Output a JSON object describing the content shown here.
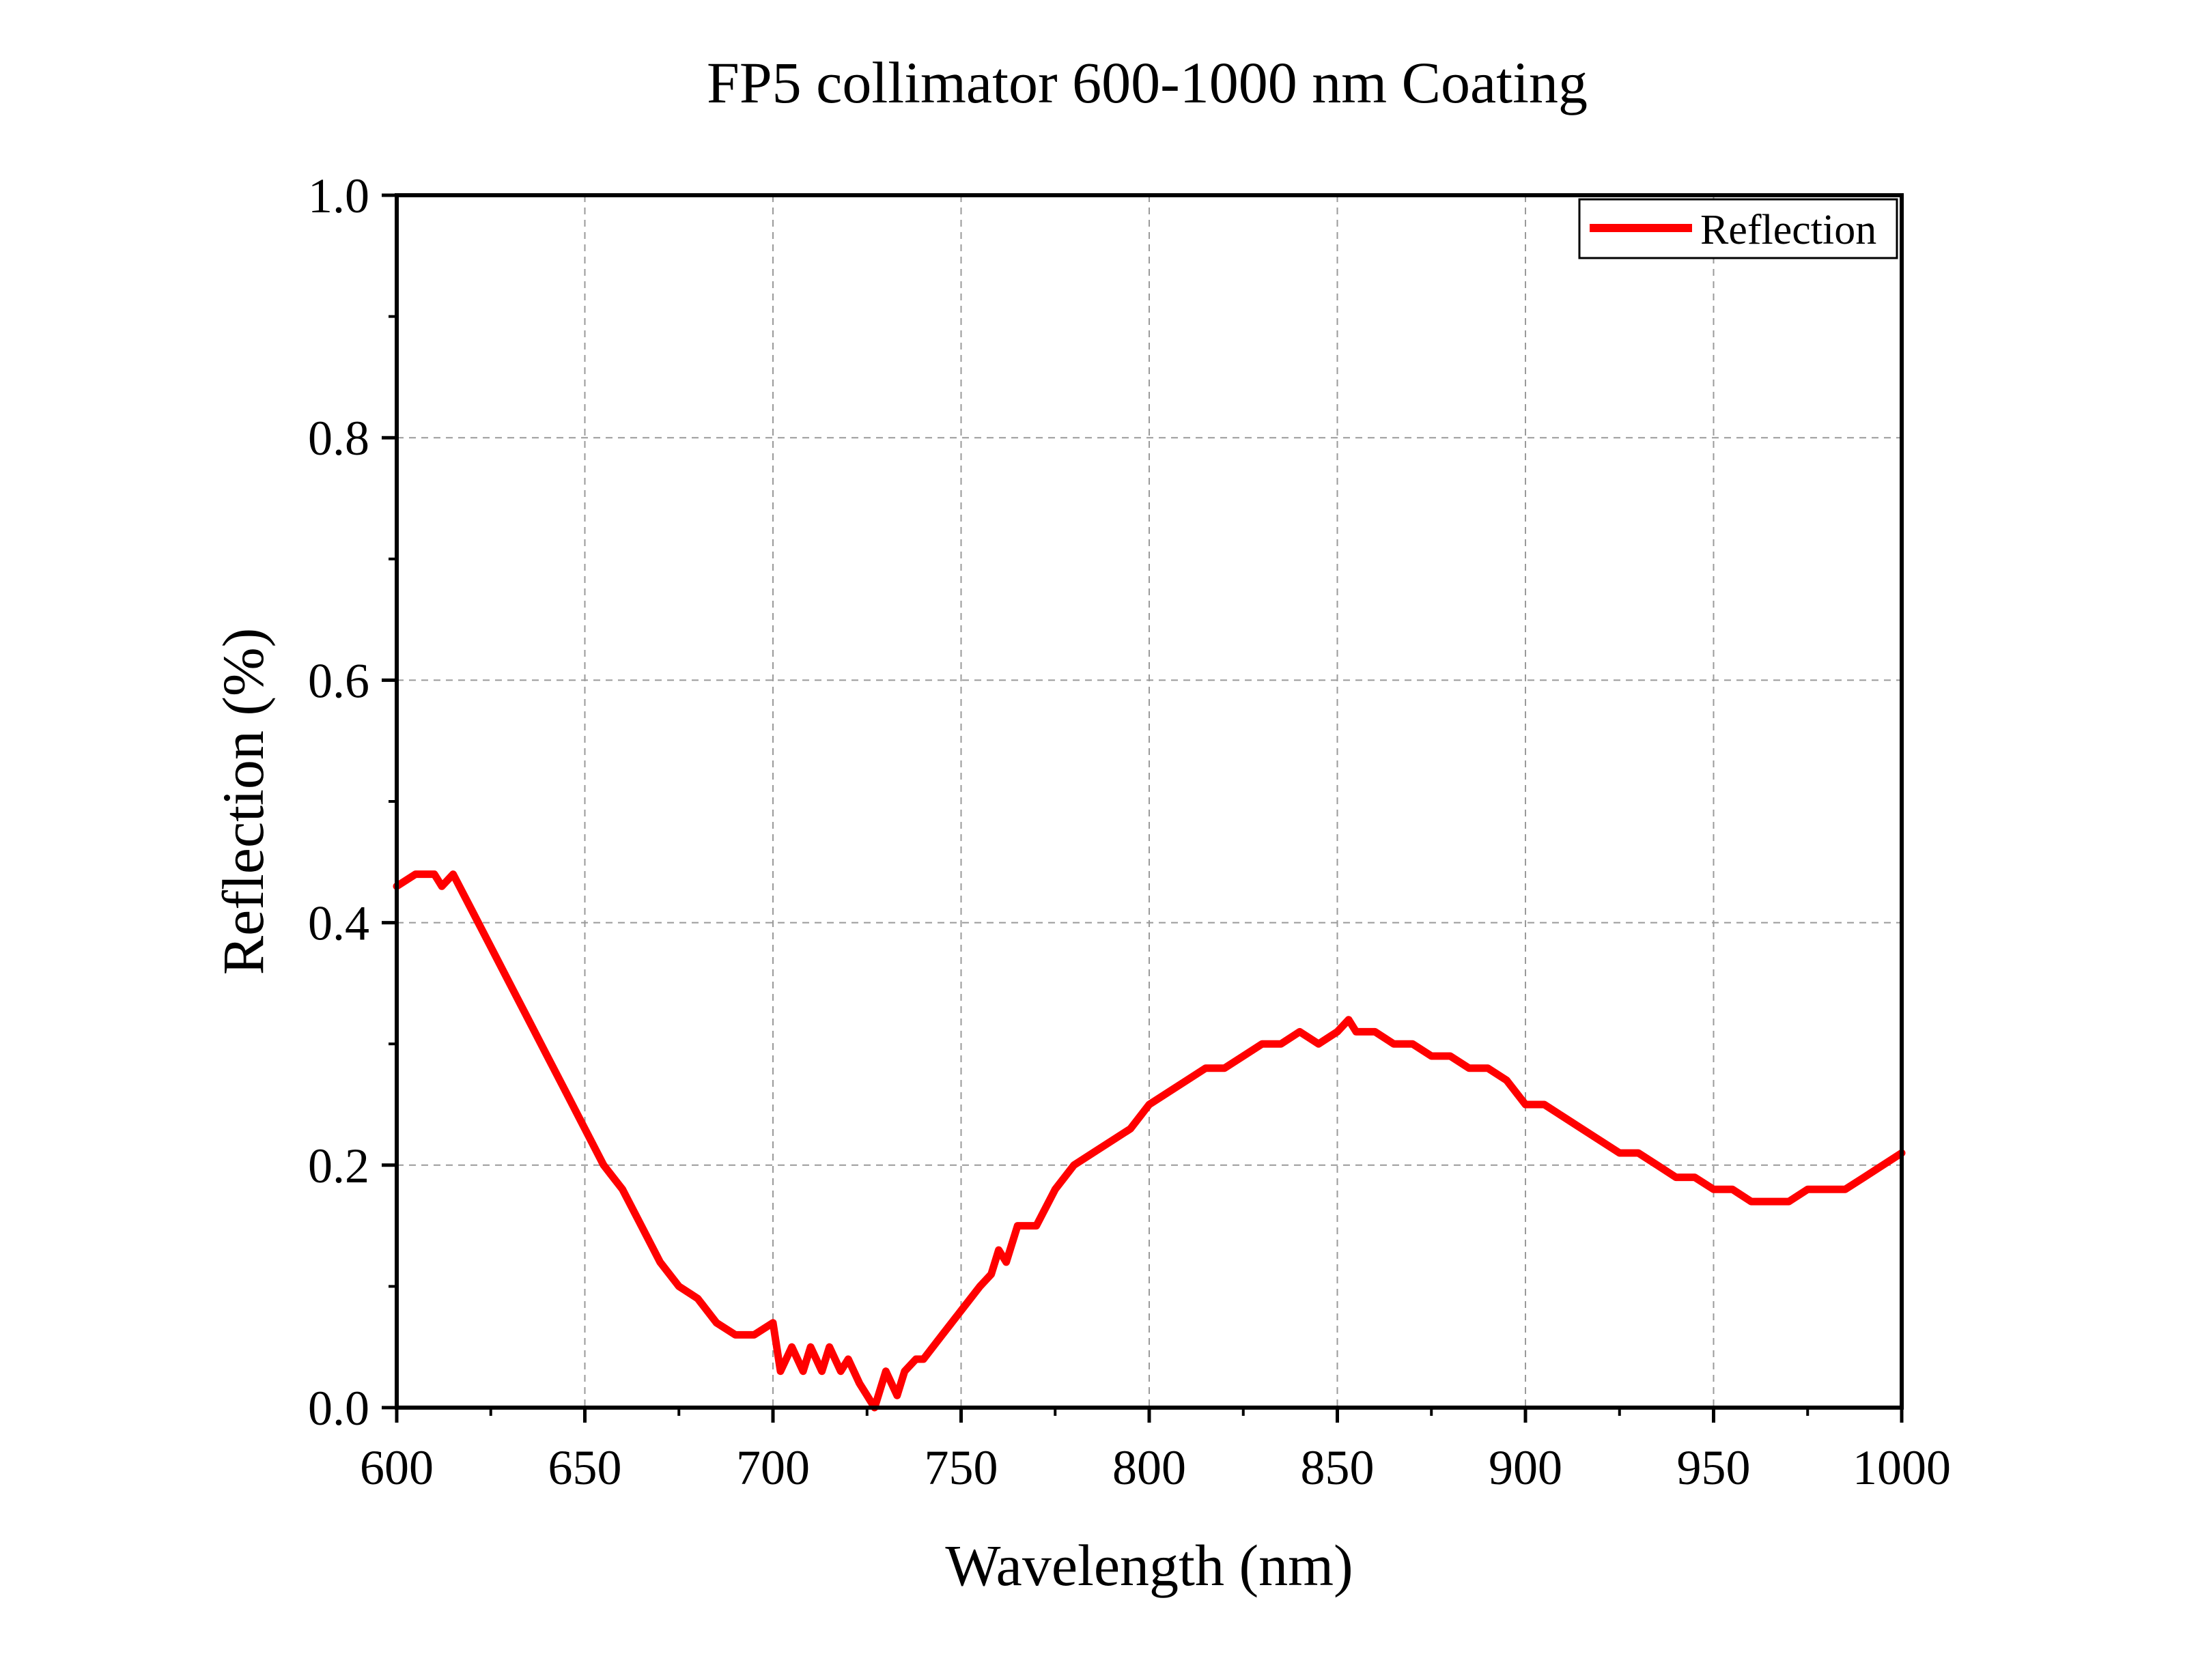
{
  "chart_data": {
    "type": "line",
    "title": "FP5 collimator 600-1000 nm Coating",
    "xlabel": "Wavelength (nm)",
    "ylabel": "Reflection (%)",
    "xlim": [
      600,
      1000
    ],
    "ylim": [
      0.0,
      1.0
    ],
    "x_ticks": [
      600,
      650,
      700,
      750,
      800,
      850,
      900,
      950,
      1000
    ],
    "x_tick_labels": [
      "600",
      "650",
      "700",
      "750",
      "800",
      "850",
      "900",
      "950",
      "1000"
    ],
    "y_ticks": [
      0.0,
      0.2,
      0.4,
      0.6,
      0.8,
      1.0
    ],
    "y_tick_labels": [
      "0.0",
      "0.2",
      "0.4",
      "0.6",
      "0.8",
      "1.0"
    ],
    "grid": true,
    "legend": {
      "position": "top-right",
      "entries": [
        "Reflection"
      ]
    },
    "series": [
      {
        "name": "Reflection",
        "color": "#ff0000",
        "x": [
          600,
          605,
          610,
          612,
          615,
          620,
          625,
          630,
          635,
          640,
          645,
          650,
          655,
          660,
          665,
          670,
          675,
          680,
          685,
          690,
          695,
          700,
          702,
          705,
          708,
          710,
          713,
          715,
          718,
          720,
          723,
          725,
          727,
          730,
          733,
          735,
          738,
          740,
          745,
          750,
          755,
          758,
          760,
          762,
          765,
          770,
          775,
          780,
          785,
          790,
          795,
          800,
          805,
          810,
          815,
          820,
          825,
          830,
          835,
          840,
          845,
          850,
          853,
          855,
          860,
          865,
          870,
          875,
          880,
          885,
          890,
          895,
          900,
          905,
          910,
          915,
          920,
          925,
          930,
          935,
          940,
          945,
          950,
          955,
          960,
          965,
          970,
          975,
          980,
          985,
          990,
          995,
          1000
        ],
        "y": [
          0.43,
          0.44,
          0.44,
          0.43,
          0.44,
          0.41,
          0.38,
          0.35,
          0.32,
          0.29,
          0.26,
          0.23,
          0.2,
          0.18,
          0.15,
          0.12,
          0.1,
          0.09,
          0.07,
          0.06,
          0.06,
          0.07,
          0.03,
          0.05,
          0.03,
          0.05,
          0.03,
          0.05,
          0.03,
          0.04,
          0.02,
          0.01,
          0.0,
          0.03,
          0.01,
          0.03,
          0.04,
          0.04,
          0.06,
          0.08,
          0.1,
          0.11,
          0.13,
          0.12,
          0.15,
          0.15,
          0.18,
          0.2,
          0.21,
          0.22,
          0.23,
          0.25,
          0.26,
          0.27,
          0.28,
          0.28,
          0.29,
          0.3,
          0.3,
          0.31,
          0.3,
          0.31,
          0.32,
          0.31,
          0.31,
          0.3,
          0.3,
          0.29,
          0.29,
          0.28,
          0.28,
          0.27,
          0.25,
          0.25,
          0.24,
          0.23,
          0.22,
          0.21,
          0.21,
          0.2,
          0.19,
          0.19,
          0.18,
          0.18,
          0.17,
          0.17,
          0.17,
          0.18,
          0.18,
          0.18,
          0.19,
          0.2,
          0.21
        ]
      }
    ]
  }
}
